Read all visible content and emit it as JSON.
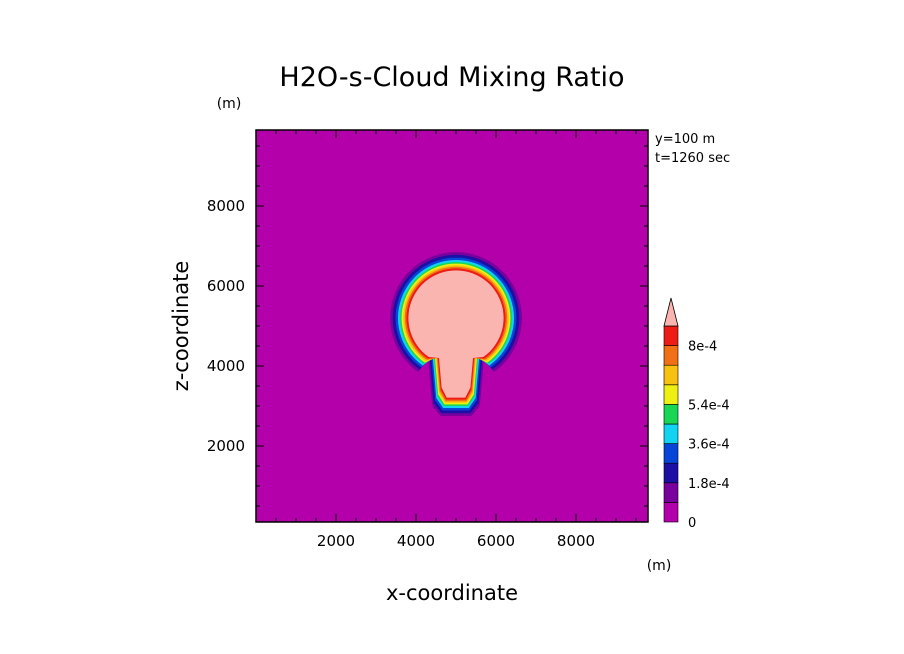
{
  "chart_data": {
    "type": "heatmap",
    "title": "H2O-s-Cloud Mixing Ratio",
    "xlabel": "x-coordinate",
    "ylabel": "z-coordinate",
    "x_unit": "(m)",
    "y_unit": "(m)",
    "xlim": [
      0,
      9800
    ],
    "ylim": [
      100,
      9900
    ],
    "x_ticks": [
      2000,
      4000,
      6000,
      8000
    ],
    "y_ticks": [
      2000,
      4000,
      6000,
      8000
    ],
    "annotations": [
      "y=100 m",
      "t=1260 sec"
    ],
    "colorbar": {
      "levels": [
        0,
        9e-05,
        0.00018,
        0.00027,
        0.00036,
        0.00045,
        0.00054,
        0.00063,
        0.00072,
        0.0008
      ],
      "labels": [
        "0",
        "1.8e-4",
        "3.6e-4",
        "5.4e-4",
        "8e-4"
      ],
      "label_levels": [
        0,
        0.00018,
        0.00036,
        0.00054,
        0.0008
      ],
      "colors": [
        "#b400aa",
        "#7a009e",
        "#1c0fa5",
        "#0645d8",
        "#12d4f2",
        "#19d655",
        "#eef013",
        "#f8c010",
        "#f27015",
        "#ee1c16",
        "#fab5b0"
      ]
    },
    "field": {
      "description_levels_outer_to_inner": [
        0,
        9e-05,
        0.00018,
        0.00027,
        0.00036,
        0.00045,
        0.00054,
        0.00063,
        0.00072,
        0.0008
      ],
      "blob_center_x": 5000,
      "blob_center_z": 5100,
      "max_value_region": "above 8e-4 inside cloud core"
    }
  }
}
